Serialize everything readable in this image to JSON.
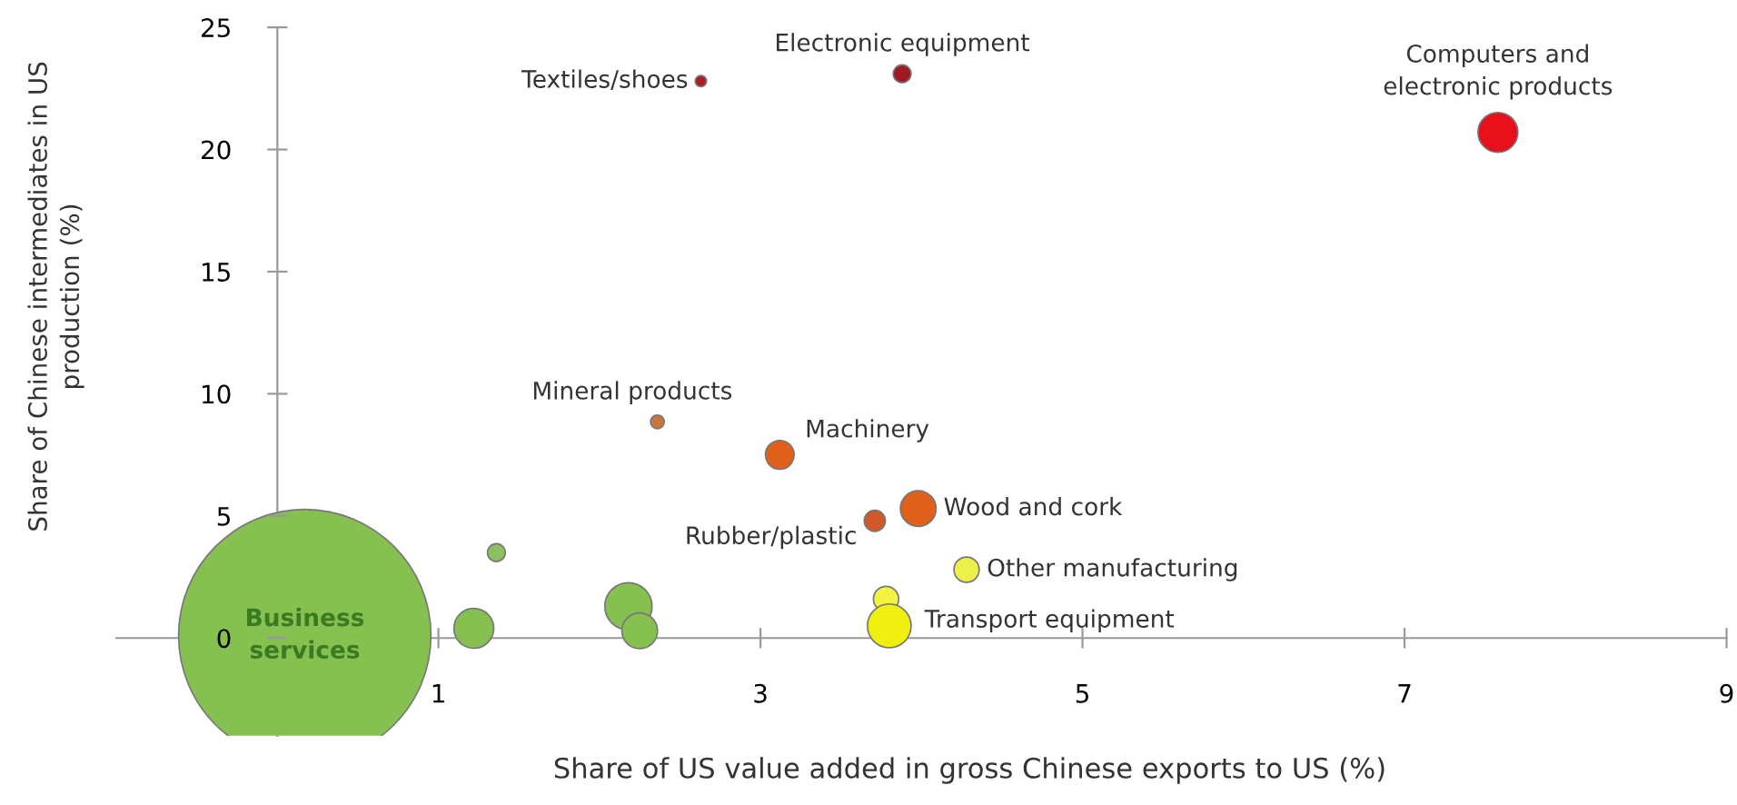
{
  "chart_data": {
    "type": "bubble",
    "xlabel": "Share of US value added in gross Chinese exports to US (%)",
    "ylabel": "Share of Chinese intermediates in US\nproduction (%)",
    "xlim": [
      -1,
      9
    ],
    "ylim": [
      -4,
      25
    ],
    "xticks": [
      1,
      3,
      5,
      7,
      9
    ],
    "yticks": [
      0,
      5,
      10,
      15,
      20,
      25
    ],
    "grid": false,
    "legend": false,
    "series": [
      {
        "x": [
          2.63,
          3.88,
          7.58,
          2.36,
          3.12,
          3.98,
          3.71,
          4.28,
          3.78,
          3.8,
          0.17,
          1.36,
          1.22,
          2.18,
          2.25
        ],
        "values": [
          22.8,
          23.1,
          20.7,
          8.85,
          7.5,
          5.3,
          4.8,
          2.8,
          1.6,
          0.5,
          0.1,
          3.5,
          0.4,
          1.3,
          0.3
        ],
        "sizes": [
          0.002,
          0.005,
          0.025,
          0.003,
          0.013,
          0.02,
          0.007,
          0.01,
          0.01,
          0.03,
          1,
          0.005,
          0.025,
          0.035,
          0.02
        ],
        "colors": [
          "#b01c24",
          "#a01a22",
          "#e8101a",
          "#c8763c",
          "#e0601c",
          "#e0601c",
          "#d05a2a",
          "#eef04a",
          "#f2f240",
          "#f0f010",
          "#86c050",
          "#8cbf60",
          "#86c050",
          "#86c050",
          "#86c050"
        ]
      }
    ],
    "annotations": [
      {
        "text": "Textiles/shoes",
        "x": 2.63,
        "y": 22.8
      },
      {
        "text": "Electronic equipment",
        "x": 3.88,
        "y": 23.1
      },
      {
        "text": "Computers and\nelectronic products",
        "x": 7.58,
        "y": 20.7
      },
      {
        "text": "Mineral products",
        "x": 2.36,
        "y": 8.85
      },
      {
        "text": "Machinery",
        "x": 3.12,
        "y": 7.5
      },
      {
        "text": "Wood and cork",
        "x": 3.98,
        "y": 5.3
      },
      {
        "text": "Rubber/plastic",
        "x": 3.71,
        "y": 4.8
      },
      {
        "text": "Other manufacturing",
        "x": 4.28,
        "y": 2.8
      },
      {
        "text": "Transport equipment",
        "x": 3.8,
        "y": 0.5
      },
      {
        "text": "Business\nservices",
        "x": 0.17,
        "y": 0.1
      }
    ]
  }
}
